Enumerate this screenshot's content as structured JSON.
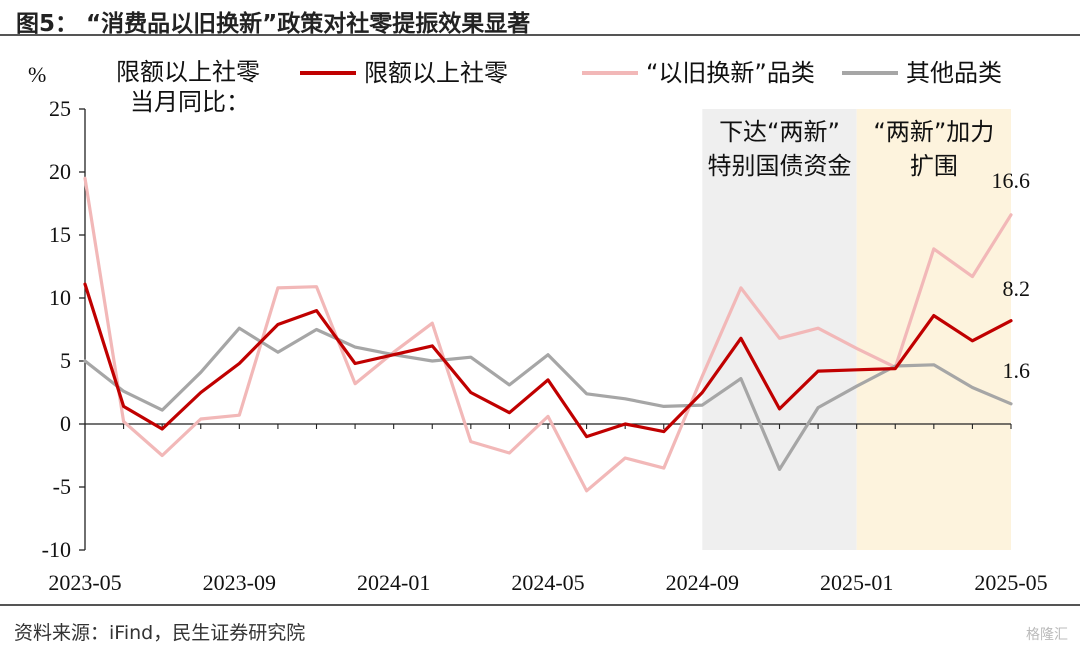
{
  "title": "图5：  “消费品以旧换新”政策对社零提振效果显著",
  "source": "资料来源：iFind，民生证券研究院",
  "watermark": "格隆汇",
  "chart_data": {
    "type": "line",
    "ylabel": "%",
    "subtitle_lines": [
      "限额以上社零",
      "当月同比："
    ],
    "ylim": [
      -10,
      25
    ],
    "yticks": [
      -10,
      -5,
      0,
      5,
      10,
      15,
      20,
      25
    ],
    "x": [
      "2023-05",
      "2023-06",
      "2023-07",
      "2023-08",
      "2023-09",
      "2023-10",
      "2023-11",
      "2023-12",
      "2024-01",
      "2024-02",
      "2024-03",
      "2024-04",
      "2024-05",
      "2024-06",
      "2024-07",
      "2024-08",
      "2024-09",
      "2024-10",
      "2024-11",
      "2024-12",
      "2025-01",
      "2025-02",
      "2025-03",
      "2025-04",
      "2025-05"
    ],
    "xtick_labels": [
      "2023-05",
      "2023-09",
      "2024-01",
      "2024-05",
      "2024-09",
      "2025-01",
      "2025-05"
    ],
    "legend_position": "top",
    "series": [
      {
        "name": "限额以上社零",
        "color": "#c00000",
        "width": 3.2,
        "values": [
          11.1,
          1.4,
          -0.4,
          2.5,
          4.8,
          7.9,
          9.0,
          4.8,
          5.5,
          6.2,
          2.5,
          0.9,
          3.5,
          -1.0,
          0.0,
          -0.6,
          2.5,
          6.8,
          1.2,
          4.2,
          4.3,
          4.4,
          8.6,
          6.6,
          8.2
        ]
      },
      {
        "name": "“以旧换新”品类",
        "color": "#f2b8b8",
        "width": 3.2,
        "values": [
          19.5,
          0.2,
          -2.5,
          0.4,
          0.7,
          10.8,
          10.9,
          3.2,
          5.7,
          8.0,
          -1.4,
          -2.3,
          0.6,
          -5.3,
          -2.7,
          -3.5,
          3.8,
          10.8,
          6.8,
          7.6,
          6.0,
          4.5,
          13.9,
          11.7,
          16.6
        ]
      },
      {
        "name": "其他品类",
        "color": "#a6a6a6",
        "width": 3.2,
        "values": [
          5.0,
          2.6,
          1.1,
          4.1,
          7.6,
          5.7,
          7.5,
          6.1,
          5.5,
          5.0,
          5.3,
          3.1,
          5.5,
          2.4,
          2.0,
          1.4,
          1.5,
          3.6,
          -3.6,
          1.3,
          3.0,
          4.6,
          4.7,
          2.9,
          1.6
        ]
      }
    ],
    "shaded_regions": [
      {
        "label_lines": [
          "下达“两新”",
          "特别国债资金"
        ],
        "from": "2024-09",
        "to": "2025-01",
        "color": "#efefef"
      },
      {
        "label_lines": [
          "“两新”加力",
          "扩围"
        ],
        "from": "2025-01",
        "to": "2025-05",
        "color": "#fdf3dd"
      }
    ],
    "end_labels": [
      "16.6",
      "8.2",
      "1.6"
    ]
  }
}
